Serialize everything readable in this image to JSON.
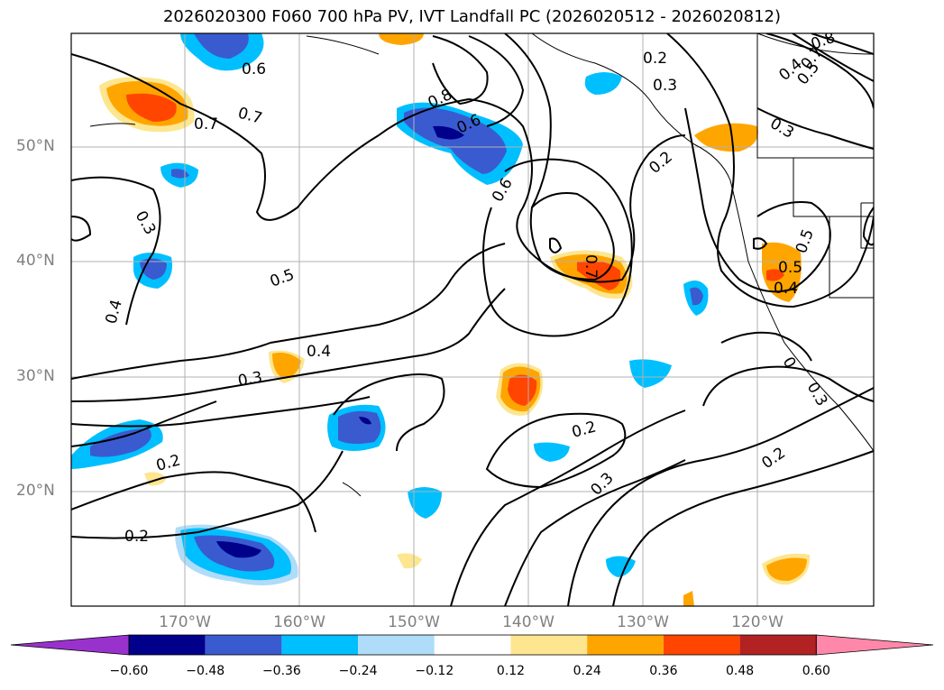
{
  "title": "2026020300 F060 700 hPa PV, IVT Landfall PC (2026020512 - 2026020812)",
  "axes": {
    "lat_labels": [
      "50°N",
      "40°N",
      "30°N",
      "20°N"
    ],
    "lon_labels": [
      "170°W",
      "160°W",
      "150°W",
      "140°W",
      "130°W",
      "120°W"
    ]
  },
  "contour_labels": [
    "0.6",
    "0.7",
    "0.7",
    "0.8",
    "0.6",
    "0.2",
    "0.3",
    "0.8",
    "0.7",
    "0.4",
    "0.5",
    "0.3",
    "0.2",
    "0.6",
    "0.7",
    "0.3",
    "0.4",
    "0.5",
    "0.4",
    "0.3",
    "0.2",
    "0.2",
    "0.3",
    "0.2",
    "0.2",
    "0.5",
    "0.5",
    "0.4",
    "0",
    "0.3"
  ],
  "colorbar": {
    "ticks": [
      "−0.60",
      "−0.48",
      "−0.36",
      "−0.24",
      "−0.12",
      "0.12",
      "0.24",
      "0.36",
      "0.48",
      "0.60"
    ],
    "colors": [
      "#9932cc",
      "#00008b",
      "#3a5bd0",
      "#00bfff",
      "#afdcf8",
      "#ffffff",
      "#fde68f",
      "#ffa500",
      "#ff4500",
      "#b22222",
      "#ff88aa"
    ]
  }
}
